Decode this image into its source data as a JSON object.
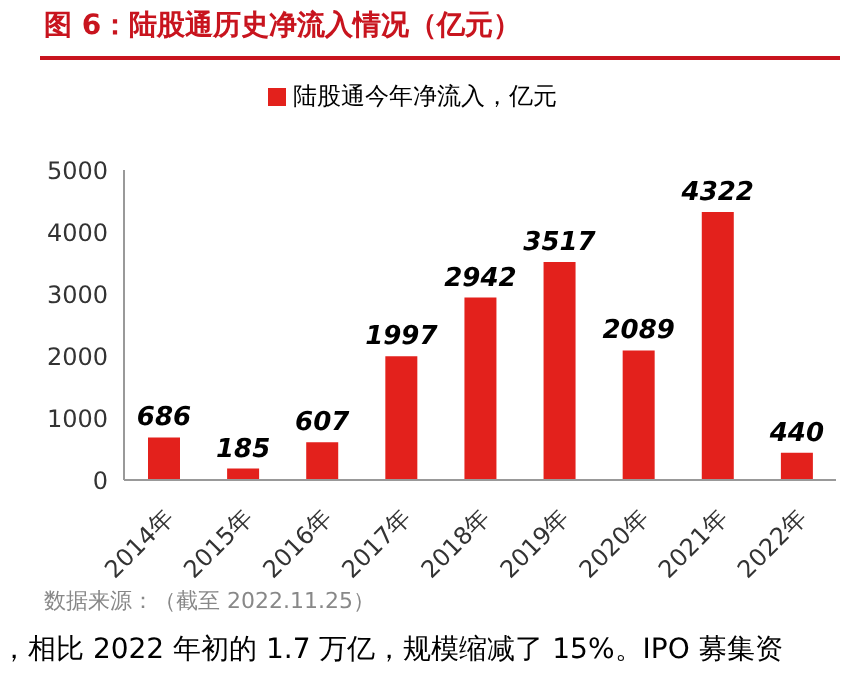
{
  "chart_data": {
    "type": "bar",
    "title": "图 6：陆股通历史净流入情况（亿元）",
    "categories": [
      "2014年",
      "2015年",
      "2016年",
      "2017年",
      "2018年",
      "2019年",
      "2020年",
      "2021年",
      "2022年"
    ],
    "series": [
      {
        "name": "陆股通今年净流入，亿元",
        "color": "#e3211c",
        "values": [
          686,
          185,
          607,
          1997,
          2942,
          3517,
          2089,
          4322,
          440
        ]
      }
    ],
    "ylim": [
      0,
      5000
    ],
    "yticks": [
      0,
      1000,
      2000,
      3000,
      4000,
      5000
    ],
    "grid": false,
    "legend": "top",
    "data_labels": true,
    "annotations": [
      "数据来源：（截至 2022.11.25）",
      "，相比 2022 年初的 1.7 万亿，规模缩减了 15%。IPO 募集资"
    ]
  }
}
